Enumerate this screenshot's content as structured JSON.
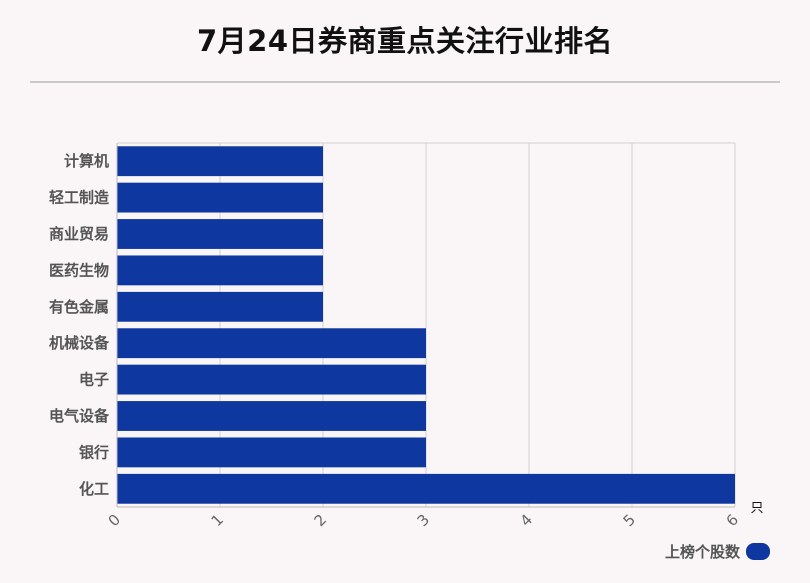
{
  "chart_data": {
    "type": "bar",
    "orientation": "horizontal",
    "title": "7月24日券商重点关注行业排名",
    "categories": [
      "计算机",
      "轻工制造",
      "商业贸易",
      "医药生物",
      "有色金属",
      "机械设备",
      "电子",
      "电气设备",
      "银行",
      "化工"
    ],
    "series": [
      {
        "name": "上榜个股数",
        "values": [
          2,
          2,
          2,
          2,
          2,
          3,
          3,
          3,
          3,
          6
        ]
      }
    ],
    "x_ticks": [
      "0",
      "1",
      "2",
      "3",
      "4",
      "5",
      "6"
    ],
    "xlim": [
      0,
      6
    ],
    "x_unit": "只",
    "grid": true,
    "legend_position": "bottom-right",
    "colors": {
      "bar": "#0f37a0",
      "grid": "#d0d0d0",
      "axis": "#bbbbbb"
    }
  }
}
